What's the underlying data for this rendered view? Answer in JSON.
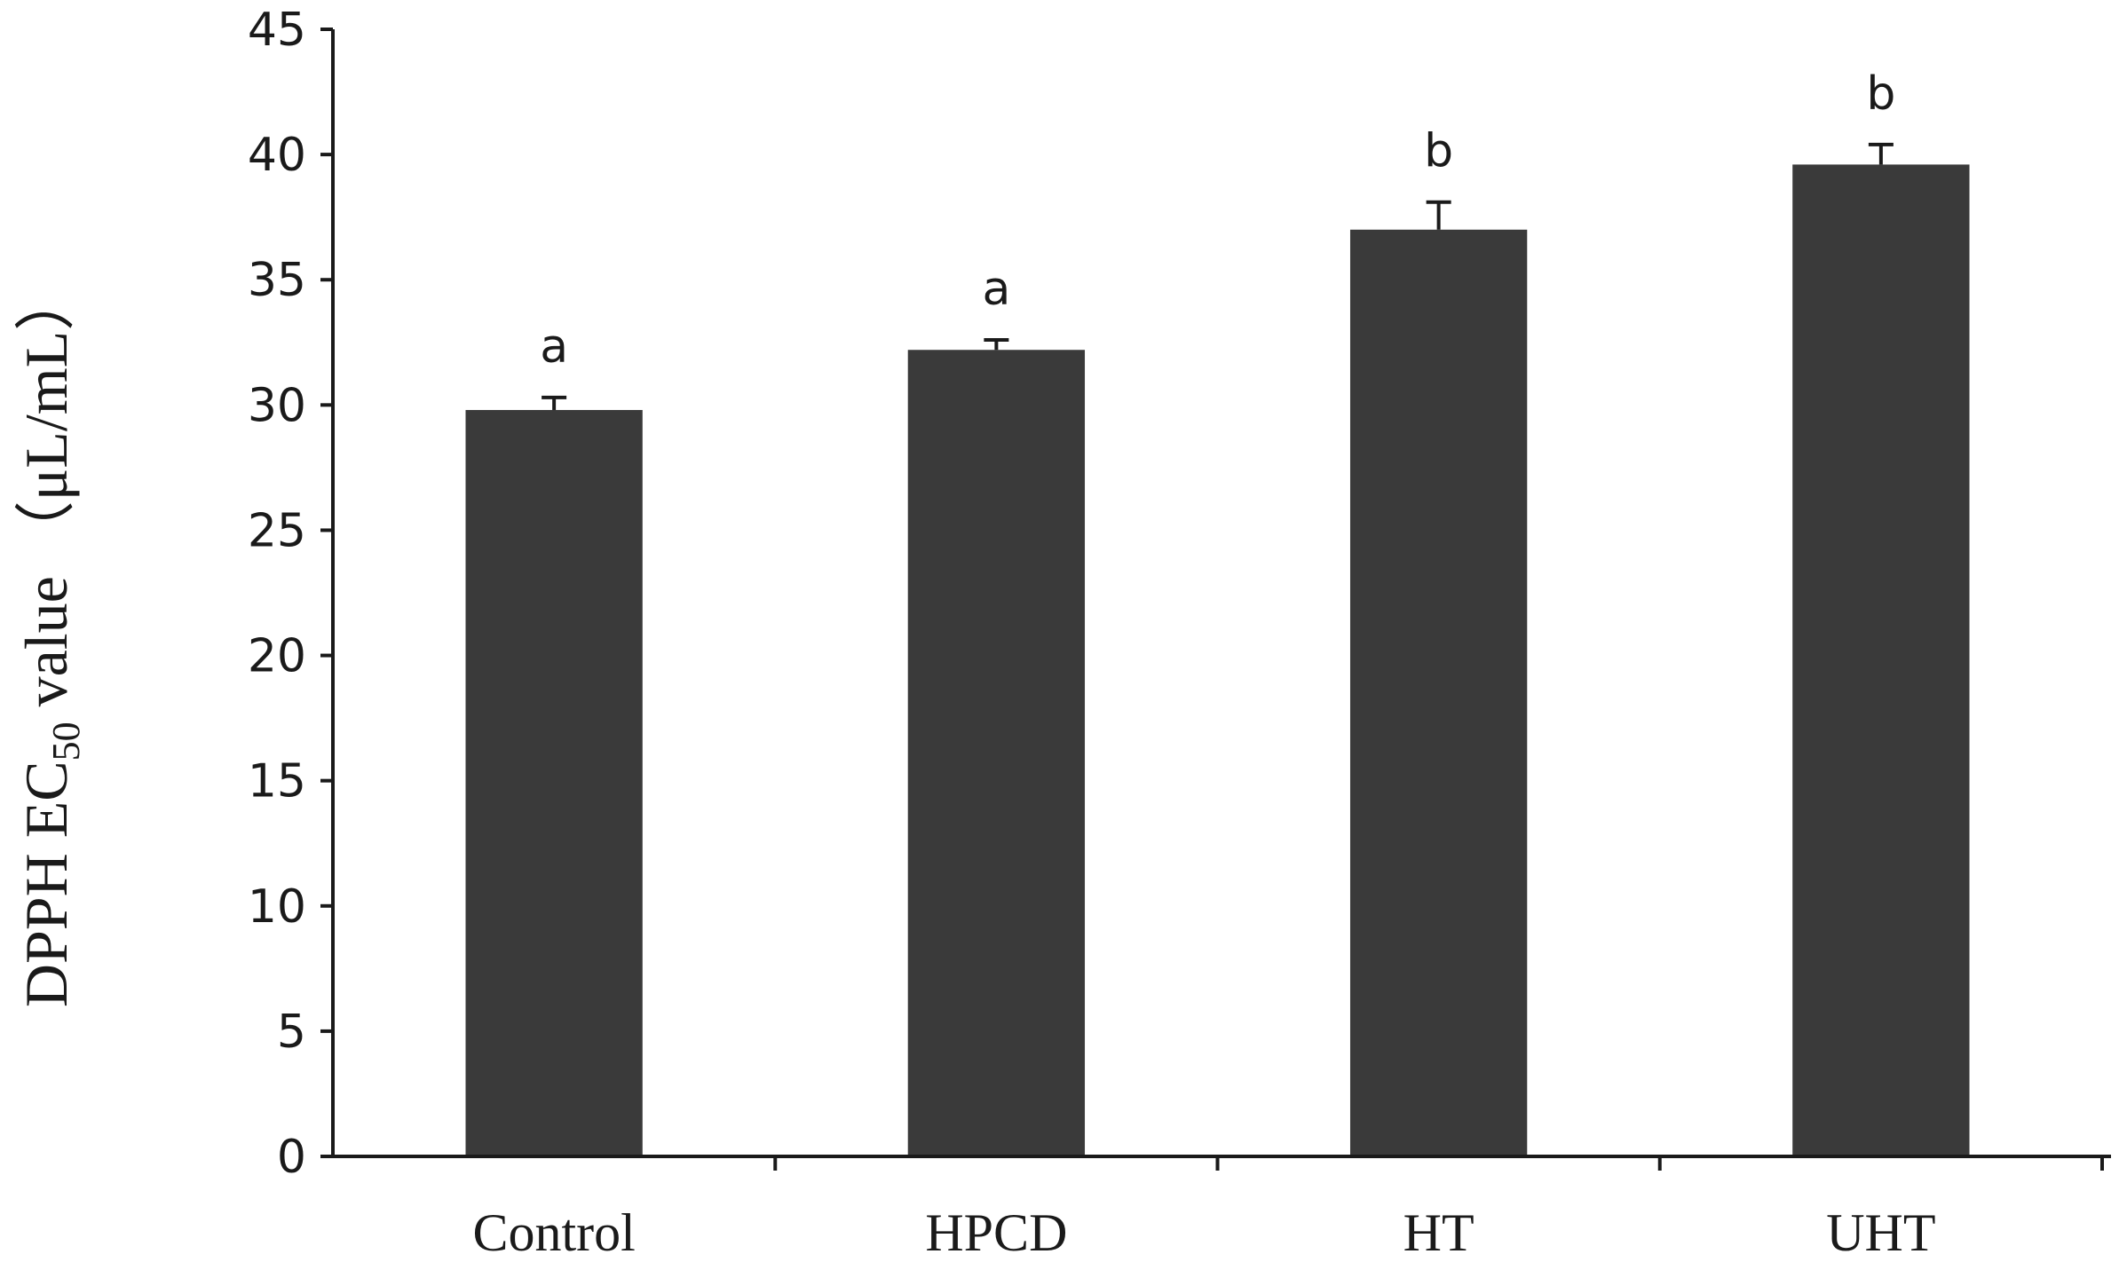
{
  "chart_data": {
    "type": "bar",
    "categories": [
      "Control",
      "HPCD",
      "HT",
      "UHT"
    ],
    "values": [
      29.8,
      32.2,
      37.0,
      39.6
    ],
    "errors": [
      0.5,
      0.4,
      1.1,
      0.8
    ],
    "significance": [
      "a",
      "a",
      "b",
      "b"
    ],
    "ylabel": {
      "prefix": "DPPH EC",
      "subscript": "50",
      "suffix": " value （μL/mL）"
    },
    "ylim": [
      0,
      45
    ],
    "yticks": [
      "0",
      "5",
      "10",
      "15",
      "20",
      "25",
      "30",
      "35",
      "40",
      "45"
    ],
    "grid": false,
    "legend": "none",
    "bar_color": "#3a3a3a",
    "axis_color": "#1a1a1a"
  }
}
